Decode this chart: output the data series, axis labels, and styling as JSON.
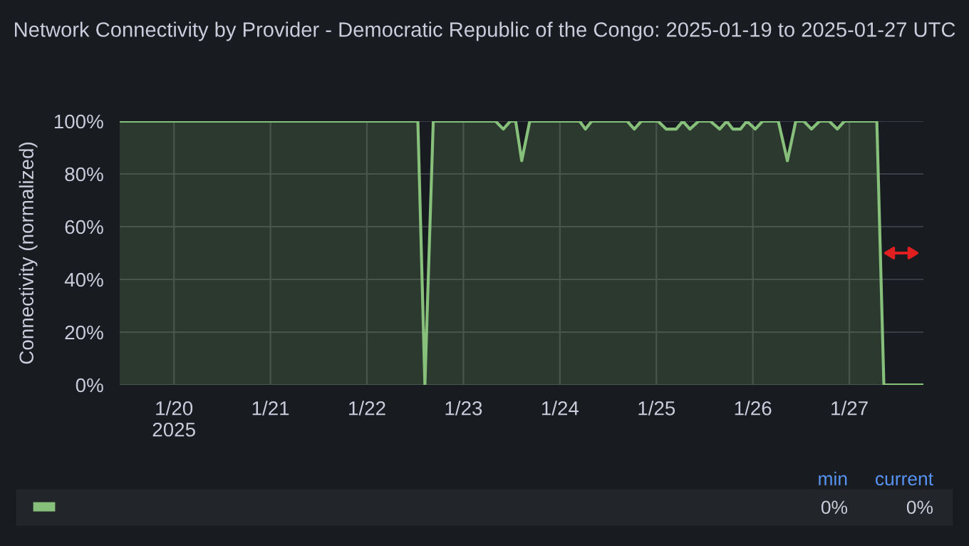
{
  "chart_data": {
    "type": "area",
    "title": "Network Connectivity by Provider - Democratic Republic of the Congo: 2025-01-19 to 2025-01-27 UTC",
    "ylabel": "Connectivity (normalized)",
    "series": [
      {
        "color": "#86c07a",
        "x": [
          "2025-01-19T10:30",
          "2025-01-22T12:40",
          "2025-01-22T14:25",
          "2025-01-22T16:30",
          "2025-01-23T08:00",
          "2025-01-23T09:55",
          "2025-01-23T11:40",
          "2025-01-23T13:00",
          "2025-01-23T14:30",
          "2025-01-23T16:30",
          "2025-01-24T04:55",
          "2025-01-24T06:20",
          "2025-01-24T07:55",
          "2025-01-24T16:45",
          "2025-01-24T18:30",
          "2025-01-24T20:15",
          "2025-01-25T00:25",
          "2025-01-25T02:25",
          "2025-01-25T04:55",
          "2025-01-25T06:35",
          "2025-01-25T08:20",
          "2025-01-25T10:30",
          "2025-01-25T13:25",
          "2025-01-25T15:45",
          "2025-01-25T17:30",
          "2025-01-25T19:00",
          "2025-01-25T20:55",
          "2025-01-25T22:30",
          "2025-01-26T00:35",
          "2025-01-26T02:25",
          "2025-01-26T06:20",
          "2025-01-26T08:35",
          "2025-01-26T10:40",
          "2025-01-26T12:40",
          "2025-01-26T14:35",
          "2025-01-26T16:35",
          "2025-01-26T19:00",
          "2025-01-26T21:00",
          "2025-01-26T22:45",
          "2025-01-27T06:50",
          "2025-01-27T08:35",
          "2025-01-27T18:25"
        ],
        "values": [
          100,
          100,
          0,
          100,
          100,
          97,
          100,
          100,
          85,
          100,
          100,
          97,
          100,
          100,
          97,
          100,
          100,
          97,
          97,
          100,
          97,
          100,
          100,
          97,
          100,
          97,
          97,
          100,
          97,
          100,
          100,
          85,
          100,
          100,
          97,
          100,
          100,
          97,
          100,
          100,
          0,
          0
        ]
      }
    ],
    "xlim": [
      "2025-01-19T10:30",
      "2025-01-27T18:25"
    ],
    "xticks": [
      {
        "value": "2025-01-20",
        "label": "1/20\n2025"
      },
      {
        "value": "2025-01-21",
        "label": "1/21"
      },
      {
        "value": "2025-01-22",
        "label": "1/22"
      },
      {
        "value": "2025-01-23",
        "label": "1/23"
      },
      {
        "value": "2025-01-24",
        "label": "1/24"
      },
      {
        "value": "2025-01-25",
        "label": "1/25"
      },
      {
        "value": "2025-01-26",
        "label": "1/26"
      },
      {
        "value": "2025-01-27",
        "label": "1/27"
      }
    ],
    "ylim": [
      0,
      100
    ],
    "yticks": [
      {
        "value": 0,
        "label": "0%"
      },
      {
        "value": 20,
        "label": "20%"
      },
      {
        "value": 40,
        "label": "40%"
      },
      {
        "value": 60,
        "label": "60%"
      },
      {
        "value": 80,
        "label": "80%"
      },
      {
        "value": 100,
        "label": "100%"
      }
    ],
    "grid": true,
    "annotations": [
      "min",
      "current",
      "0%",
      "0%"
    ]
  }
}
